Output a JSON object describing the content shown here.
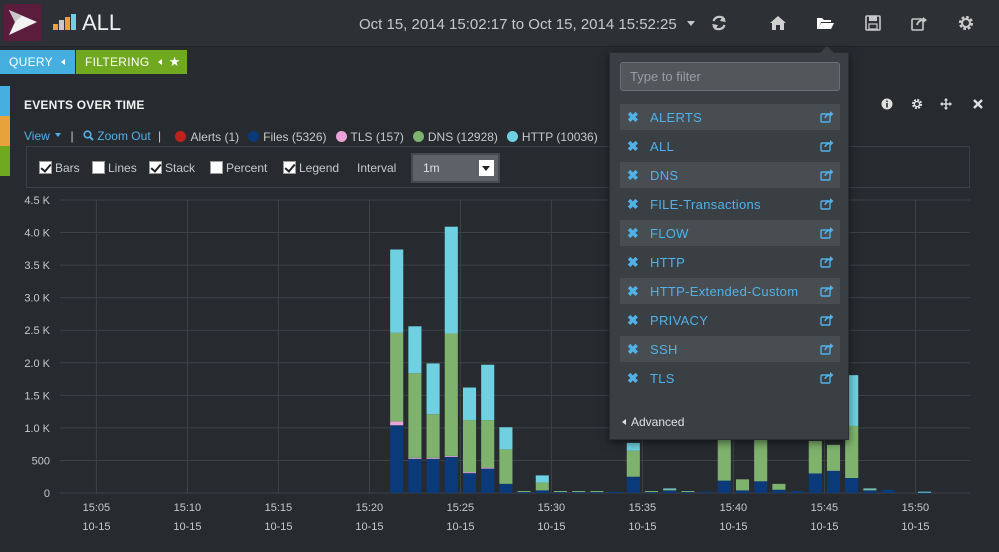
{
  "header": {
    "dashboard_title": "ALL",
    "time_range": "Oct 15, 2014 15:02:17 to Oct 15, 2014 15:52:25",
    "nav_icons": [
      "refresh-icon",
      "home-icon",
      "folder-open-icon",
      "save-icon",
      "share-icon",
      "gear-icon"
    ]
  },
  "querybar": {
    "query_label": "QUERY",
    "filtering_label": "FILTERING"
  },
  "panel": {
    "title": "EVENTS OVER TIME",
    "view_label": "View",
    "zoom_out_label": "Zoom Out",
    "separator": "|",
    "header_icons": [
      "info-icon",
      "gear-icon",
      "move-icon",
      "close-icon"
    ]
  },
  "legend": [
    {
      "label": "Alerts (1)",
      "color": "#c0211d"
    },
    {
      "label": "Files (5326)",
      "color": "#0a3a7a"
    },
    {
      "label": "TLS (157)",
      "color": "#e9a3d6"
    },
    {
      "label": "DNS (12928)",
      "color": "#7eb26d"
    },
    {
      "label": "HTTP (10036)",
      "color": "#6ed0e0"
    }
  ],
  "options": {
    "bars": {
      "label": "Bars",
      "checked": true
    },
    "lines": {
      "label": "Lines",
      "checked": false
    },
    "stack": {
      "label": "Stack",
      "checked": true
    },
    "percent": {
      "label": "Percent",
      "checked": false
    },
    "legend": {
      "label": "Legend",
      "checked": true
    },
    "interval_label": "Interval",
    "interval_value": "1m"
  },
  "chart_data": {
    "type": "bar",
    "stacked": true,
    "ylim": [
      0,
      4500
    ],
    "y_ticks": [
      0,
      500,
      1000,
      1500,
      2000,
      2500,
      3000,
      3500,
      4000,
      4500
    ],
    "y_tick_labels": [
      "0",
      "500",
      "1.0 K",
      "1.5 K",
      "2.0 K",
      "2.5 K",
      "3.0 K",
      "3.5 K",
      "4.0 K",
      "4.5 K"
    ],
    "x_ticks": [
      {
        "time": "15:05",
        "date": "10-15"
      },
      {
        "time": "15:10",
        "date": "10-15"
      },
      {
        "time": "15:15",
        "date": "10-15"
      },
      {
        "time": "15:20",
        "date": "10-15"
      },
      {
        "time": "15:25",
        "date": "10-15"
      },
      {
        "time": "15:30",
        "date": "10-15"
      },
      {
        "time": "15:35",
        "date": "10-15"
      },
      {
        "time": "15:40",
        "date": "10-15"
      },
      {
        "time": "15:45",
        "date": "10-15"
      },
      {
        "time": "15:50",
        "date": "10-15"
      }
    ],
    "x_start_minute": 3,
    "series_colors": [
      "#c0211d",
      "#0a3a7a",
      "#e9a3d6",
      "#7eb26d",
      "#6ed0e0"
    ],
    "grid": true,
    "bars": [
      {
        "minute": 21,
        "alerts": 0,
        "files": 1040,
        "tls": 60,
        "dns": 1360,
        "http": 1280
      },
      {
        "minute": 22,
        "alerts": 0,
        "files": 530,
        "tls": 10,
        "dns": 1300,
        "http": 720
      },
      {
        "minute": 23,
        "alerts": 0,
        "files": 530,
        "tls": 10,
        "dns": 670,
        "http": 780
      },
      {
        "minute": 24,
        "alerts": 0,
        "files": 560,
        "tls": 10,
        "dns": 1880,
        "http": 1640
      },
      {
        "minute": 25,
        "alerts": 0,
        "files": 310,
        "tls": 10,
        "dns": 800,
        "http": 500
      },
      {
        "minute": 26,
        "alerts": 0,
        "files": 380,
        "tls": 10,
        "dns": 730,
        "http": 850
      },
      {
        "minute": 27,
        "alerts": 0,
        "files": 140,
        "tls": 0,
        "dns": 530,
        "http": 340
      },
      {
        "minute": 28,
        "alerts": 0,
        "files": 20,
        "tls": 0,
        "dns": 10,
        "http": 0
      },
      {
        "minute": 29,
        "alerts": 0,
        "files": 40,
        "tls": 0,
        "dns": 120,
        "http": 110
      },
      {
        "minute": 30,
        "alerts": 0,
        "files": 20,
        "tls": 0,
        "dns": 10,
        "http": 0
      },
      {
        "minute": 31,
        "alerts": 0,
        "files": 20,
        "tls": 0,
        "dns": 10,
        "http": 0
      },
      {
        "minute": 32,
        "alerts": 0,
        "files": 20,
        "tls": 0,
        "dns": 10,
        "http": 0
      },
      {
        "minute": 33,
        "alerts": 0,
        "files": 20,
        "tls": 0,
        "dns": 0,
        "http": 0
      },
      {
        "minute": 34,
        "alerts": 0,
        "files": 250,
        "tls": 0,
        "dns": 400,
        "http": 120
      },
      {
        "minute": 35,
        "alerts": 0,
        "files": 20,
        "tls": 0,
        "dns": 10,
        "http": 0
      },
      {
        "minute": 36,
        "alerts": 0,
        "files": 40,
        "tls": 0,
        "dns": 20,
        "http": 10
      },
      {
        "minute": 37,
        "alerts": 0,
        "files": 20,
        "tls": 0,
        "dns": 10,
        "http": 0
      },
      {
        "minute": 38,
        "alerts": 0,
        "files": 20,
        "tls": 0,
        "dns": 0,
        "http": 0
      },
      {
        "minute": 39,
        "alerts": 0,
        "files": 190,
        "tls": 0,
        "dns": 900,
        "http": 0
      },
      {
        "minute": 40,
        "alerts": 0,
        "files": 40,
        "tls": 0,
        "dns": 170,
        "http": 0
      },
      {
        "minute": 41,
        "alerts": 0,
        "files": 180,
        "tls": 0,
        "dns": 800,
        "http": 0
      },
      {
        "minute": 42,
        "alerts": 0,
        "files": 50,
        "tls": 0,
        "dns": 90,
        "http": 0
      },
      {
        "minute": 43,
        "alerts": 0,
        "files": 30,
        "tls": 0,
        "dns": 0,
        "http": 0
      },
      {
        "minute": 44,
        "alerts": 0,
        "files": 300,
        "tls": 0,
        "dns": 500,
        "http": 0
      },
      {
        "minute": 45,
        "alerts": 0,
        "files": 340,
        "tls": 0,
        "dns": 400,
        "http": 0
      },
      {
        "minute": 46,
        "alerts": 0,
        "files": 230,
        "tls": 0,
        "dns": 800,
        "http": 780
      },
      {
        "minute": 47,
        "alerts": 0,
        "files": 40,
        "tls": 0,
        "dns": 20,
        "http": 10
      },
      {
        "minute": 48,
        "alerts": 0,
        "files": 50,
        "tls": 0,
        "dns": 0,
        "http": 0
      },
      {
        "minute": 50,
        "alerts": 0,
        "files": 10,
        "tls": 0,
        "dns": 0,
        "http": 10
      }
    ]
  },
  "dashboards_dropdown": {
    "filter_placeholder": "Type to filter",
    "items": [
      {
        "name": "ALERTS"
      },
      {
        "name": "ALL"
      },
      {
        "name": "DNS"
      },
      {
        "name": "FILE-Transactions"
      },
      {
        "name": "FLOW"
      },
      {
        "name": "HTTP"
      },
      {
        "name": "HTTP-Extended-Custom"
      },
      {
        "name": "PRIVACY"
      },
      {
        "name": "SSH"
      },
      {
        "name": "TLS"
      }
    ],
    "advanced_label": "Advanced"
  },
  "colors": {
    "query_tab": "#45b0e0",
    "filter_tab": "#70a91f",
    "link_blue": "#4fb2e9",
    "logo_bg": "#5c1c3c"
  }
}
